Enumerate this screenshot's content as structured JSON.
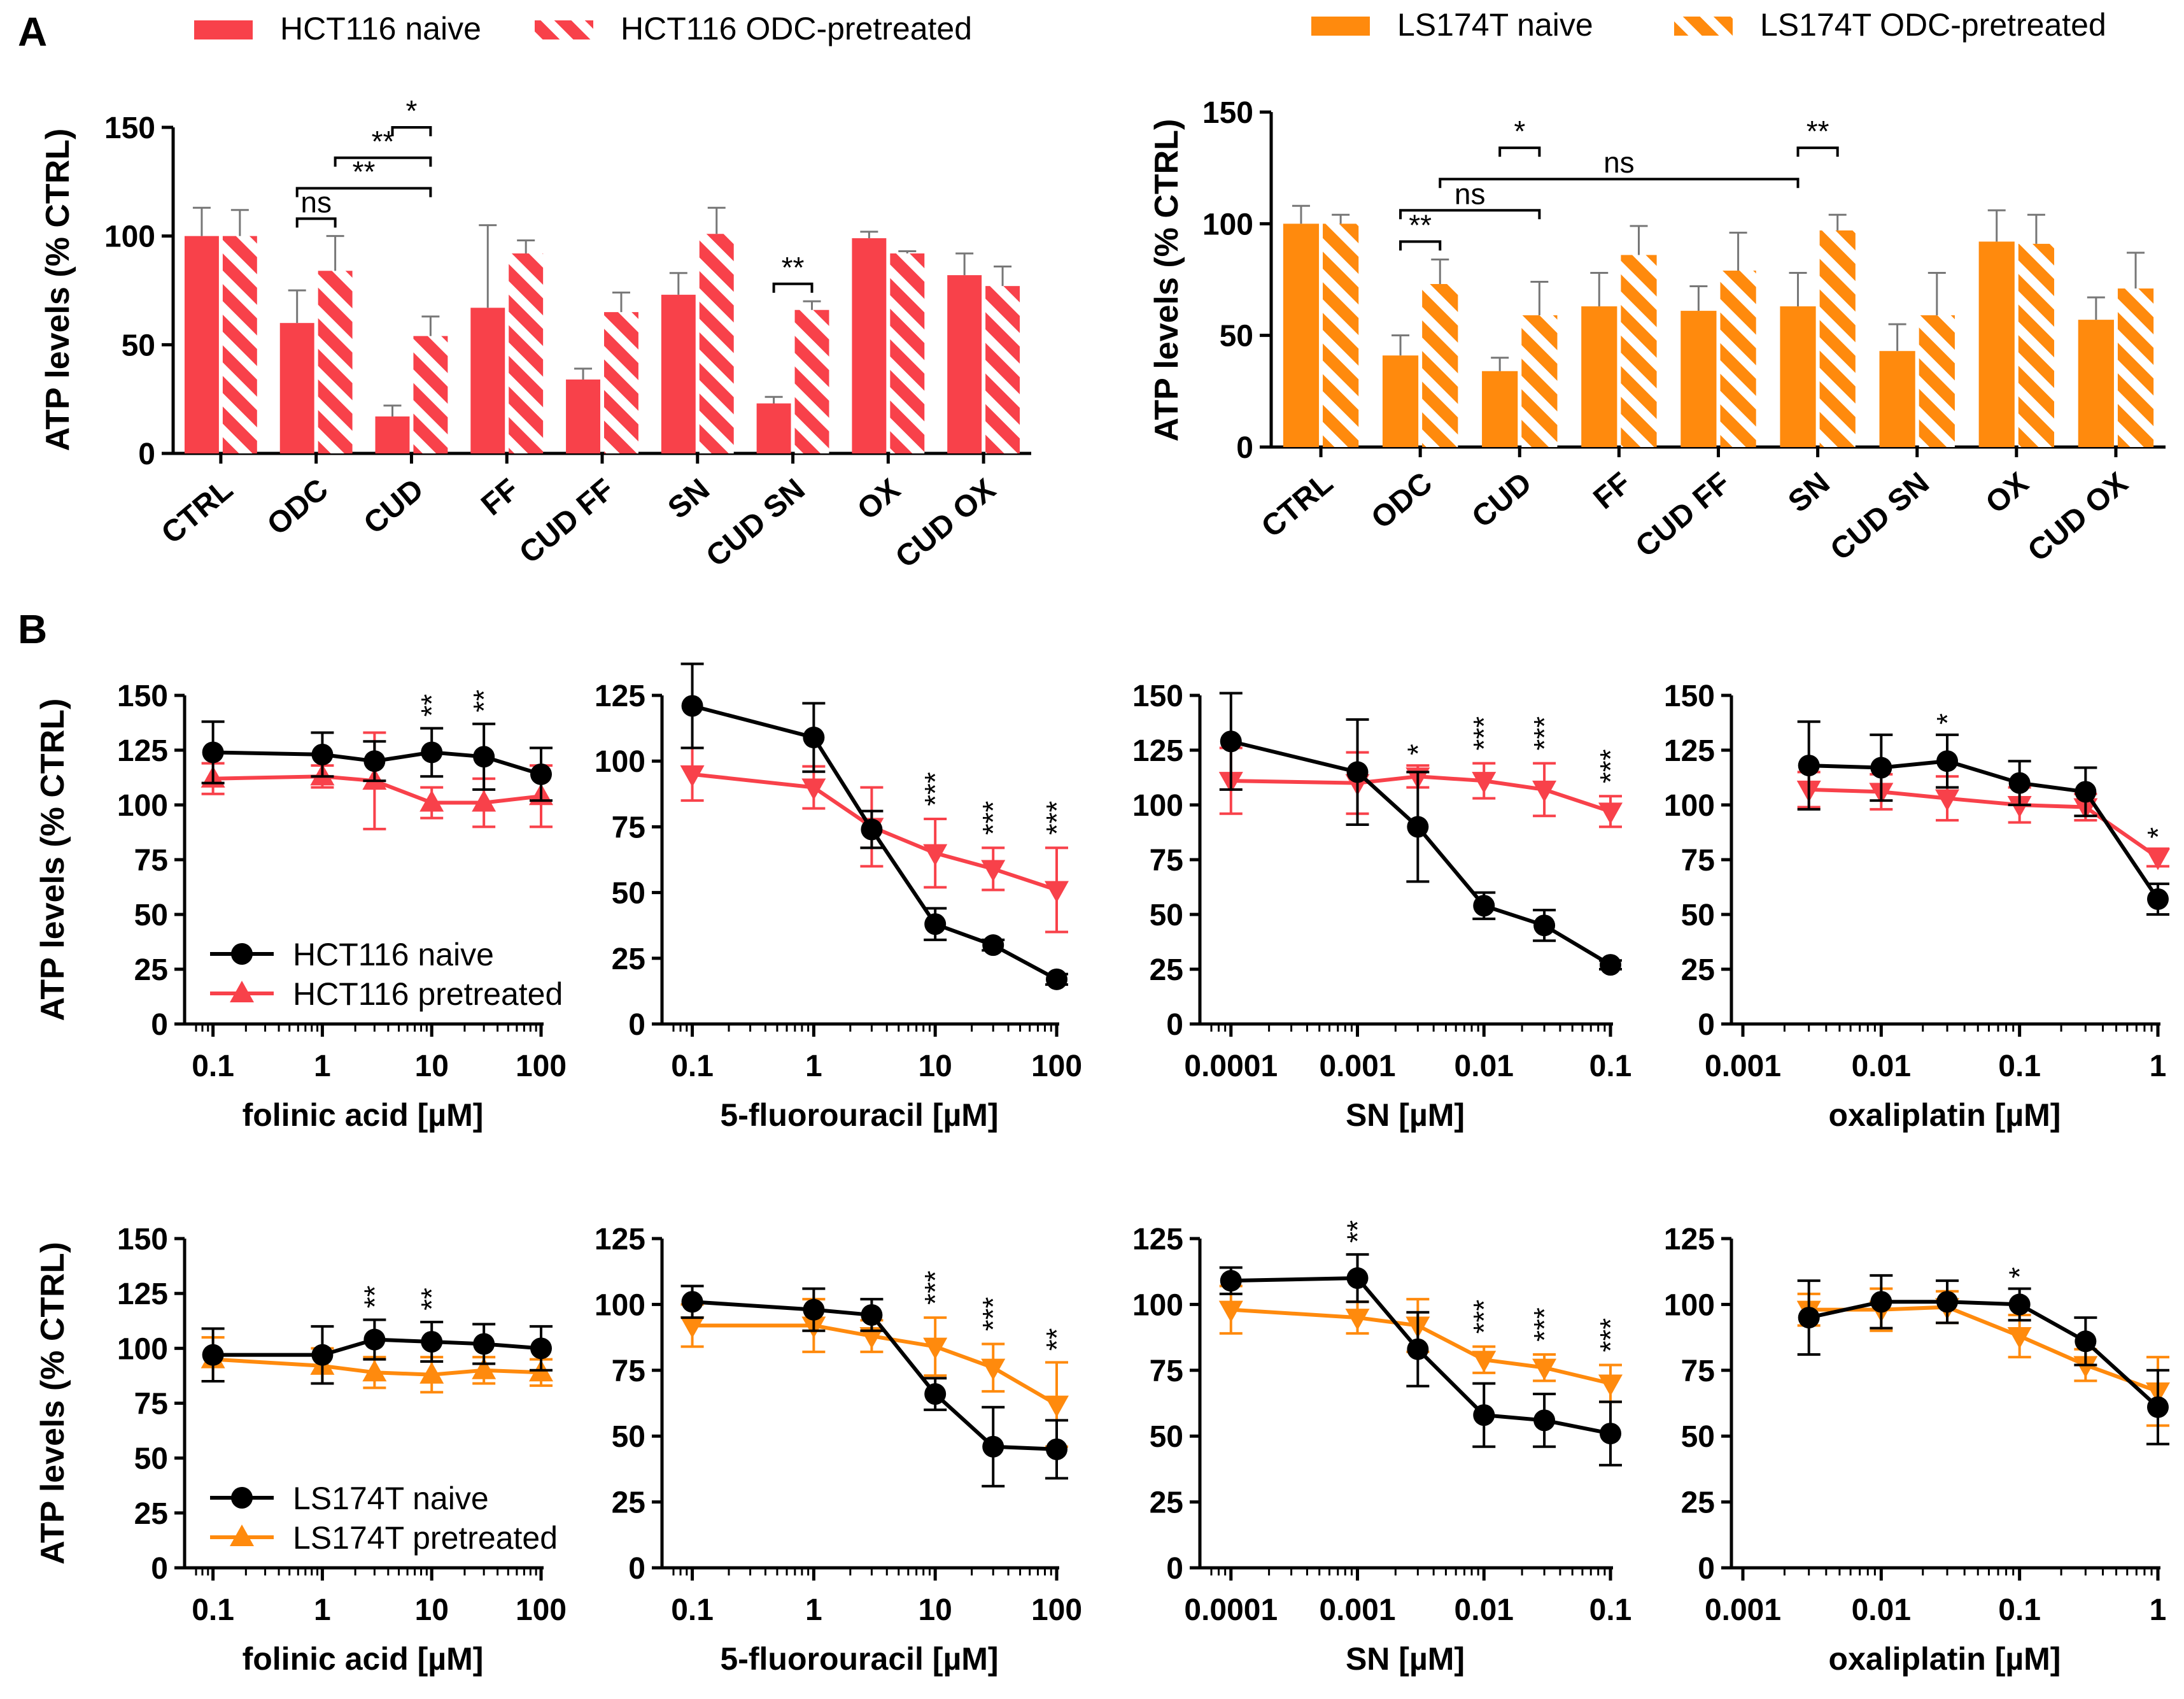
{
  "panel_labels": [
    "A",
    "B"
  ],
  "colors": {
    "hct": "#f8414a",
    "ls": "#ff8a0d",
    "naive_line": "#000000"
  },
  "chart_data": [
    {
      "type": "bar",
      "panel": "A-left",
      "title": "",
      "ylabel": "ATP levels (% CTRL)",
      "xlabel": "",
      "ylim": [
        0,
        150
      ],
      "yticks": [
        "0",
        "50",
        "100",
        "150"
      ],
      "categories": [
        "CTRL",
        "ODC",
        "CUD",
        "FF",
        "CUD FF",
        "SN",
        "CUD SN",
        "OX",
        "CUD OX"
      ],
      "series": [
        {
          "name": "HCT116 naive",
          "pattern": "solid",
          "values": [
            100,
            60,
            17,
            67,
            34,
            73,
            23,
            99,
            82
          ],
          "errors": [
            13,
            15,
            5,
            38,
            5,
            10,
            3,
            3,
            10
          ]
        },
        {
          "name": "HCT116 ODC-pretreated",
          "pattern": "hatched",
          "values": [
            100,
            84,
            54,
            92,
            65,
            101,
            66,
            92,
            77
          ],
          "errors": [
            12,
            16,
            9,
            6,
            9,
            12,
            4,
            1,
            9
          ]
        }
      ],
      "brackets": [
        {
          "from": [
            1,
            0
          ],
          "to": [
            1,
            1
          ],
          "label": "ns"
        },
        {
          "from": [
            1,
            0
          ],
          "to": [
            2,
            1
          ],
          "label": "**"
        },
        {
          "from": [
            1,
            1
          ],
          "to": [
            2,
            1
          ],
          "label": "**"
        },
        {
          "from": [
            2,
            0
          ],
          "to": [
            2,
            1
          ],
          "label": "*"
        },
        {
          "from": [
            6,
            0
          ],
          "to": [
            6,
            1
          ],
          "label": "**"
        }
      ]
    },
    {
      "type": "bar",
      "panel": "A-right",
      "title": "",
      "ylabel": "ATP levels (% CTRL)",
      "xlabel": "",
      "ylim": [
        0,
        150
      ],
      "yticks": [
        "0",
        "50",
        "100",
        "150"
      ],
      "categories": [
        "CTRL",
        "ODC",
        "CUD",
        "FF",
        "CUD FF",
        "SN",
        "CUD SN",
        "OX",
        "CUD OX"
      ],
      "series": [
        {
          "name": "LS174T naive",
          "pattern": "solid",
          "values": [
            100,
            41,
            34,
            63,
            61,
            63,
            43,
            92,
            57
          ],
          "errors": [
            8,
            9,
            6,
            15,
            11,
            15,
            12,
            14,
            10
          ]
        },
        {
          "name": "LS174T ODC-pretreated",
          "pattern": "hatched",
          "values": [
            100,
            73,
            59,
            86,
            79,
            97,
            59,
            91,
            71
          ],
          "errors": [
            4,
            11,
            15,
            13,
            17,
            7,
            19,
            13,
            16
          ]
        }
      ],
      "brackets": [
        {
          "from": [
            1,
            0
          ],
          "to": [
            1,
            1
          ],
          "label": "**"
        },
        {
          "from": [
            1,
            0
          ],
          "to": [
            2,
            1
          ],
          "label": "ns"
        },
        {
          "from": [
            1,
            1
          ],
          "to": [
            5,
            0
          ],
          "label": "ns"
        },
        {
          "from": [
            2,
            0
          ],
          "to": [
            2,
            1
          ],
          "label": "*"
        },
        {
          "from": [
            5,
            0
          ],
          "to": [
            5,
            1
          ],
          "label": "**"
        }
      ]
    },
    {
      "type": "line",
      "panel": "B-1",
      "xscale": "log",
      "xlabel": "folinic  acid [µM]",
      "ylabel": "ATP levels (% CTRL)",
      "xlim": [
        0.07,
        100
      ],
      "ylim": [
        0,
        150
      ],
      "xticks": [
        0.1,
        1,
        10,
        100
      ],
      "xtick_labels": [
        "0.1",
        "1",
        "10",
        "100"
      ],
      "yticks": [
        "0",
        "25",
        "50",
        "75",
        "100",
        "125",
        "150"
      ],
      "series": [
        {
          "name": "HCT116 naive",
          "marker": "circle",
          "x": [
            0.1,
            1,
            3,
            10,
            30,
            100
          ],
          "y": [
            124,
            123,
            120,
            124,
            122,
            114
          ],
          "err": [
            14,
            10,
            9,
            11,
            15,
            12
          ]
        },
        {
          "name": "HCT116 pretreated",
          "marker": "triangle-up",
          "x": [
            0.1,
            1,
            3,
            10,
            30,
            100
          ],
          "y": [
            112,
            113,
            111,
            101,
            101,
            104
          ],
          "err": [
            7,
            5,
            22,
            7,
            11,
            14
          ]
        }
      ],
      "legend": "bottom-left",
      "stars": [
        {
          "x": 10,
          "label": "**"
        },
        {
          "x": 30,
          "label": "**"
        }
      ]
    },
    {
      "type": "line",
      "panel": "B-2",
      "xscale": "log",
      "xlabel": "5-fluorouracil [µM]",
      "ylabel": "",
      "xlim": [
        0.07,
        100
      ],
      "ylim": [
        0,
        125
      ],
      "xticks": [
        0.1,
        1,
        10,
        100
      ],
      "xtick_labels": [
        "0.1",
        "1",
        "10",
        "100"
      ],
      "yticks": [
        "0",
        "25",
        "50",
        "75",
        "100",
        "125"
      ],
      "series": [
        {
          "name": "HCT116 naive",
          "marker": "circle",
          "x": [
            0.1,
            1,
            3,
            10,
            30,
            100
          ],
          "y": [
            121,
            109,
            74,
            38,
            30,
            17
          ],
          "err": [
            16,
            13,
            7,
            6,
            2,
            2
          ]
        },
        {
          "name": "HCT116 pretreated",
          "marker": "triangle-down",
          "x": [
            0.1,
            1,
            3,
            10,
            30,
            100
          ],
          "y": [
            95,
            90,
            75,
            65,
            59,
            51
          ],
          "err": [
            10,
            8,
            15,
            13,
            8,
            16
          ]
        }
      ],
      "stars": [
        {
          "x": 10,
          "label": "***"
        },
        {
          "x": 30,
          "label": "***"
        },
        {
          "x": 100,
          "label": "***"
        }
      ]
    },
    {
      "type": "line",
      "panel": "B-3",
      "xscale": "log",
      "xlabel": "SN [µM]",
      "ylabel": "",
      "xlim": [
        7e-05,
        0.1
      ],
      "ylim": [
        0,
        150
      ],
      "xticks": [
        0.0001,
        0.001,
        0.01,
        0.1
      ],
      "xtick_labels": [
        "0.0001",
        "0.001",
        "0.01",
        "0.1"
      ],
      "yticks": [
        "0",
        "25",
        "50",
        "75",
        "100",
        "125",
        "150"
      ],
      "series": [
        {
          "name": "HCT116 naive",
          "marker": "circle",
          "x": [
            0.0001,
            0.001,
            0.003,
            0.01,
            0.03,
            0.1
          ],
          "y": [
            129,
            115,
            90,
            54,
            45,
            27
          ],
          "err": [
            22,
            24,
            25,
            6,
            7,
            2
          ]
        },
        {
          "name": "HCT116 pretreated",
          "marker": "triangle-down",
          "x": [
            0.0001,
            0.001,
            0.003,
            0.01,
            0.03,
            0.1
          ],
          "y": [
            111,
            110,
            113,
            111,
            107,
            97
          ],
          "err": [
            15,
            14,
            5,
            8,
            12,
            7
          ]
        }
      ],
      "stars": [
        {
          "x": 0.003,
          "label": "*"
        },
        {
          "x": 0.01,
          "label": "***"
        },
        {
          "x": 0.03,
          "label": "***"
        },
        {
          "x": 0.1,
          "label": "***"
        }
      ]
    },
    {
      "type": "line",
      "panel": "B-4",
      "xscale": "log",
      "xlabel": "oxaliplatin [µM]",
      "ylabel": "",
      "xlim": [
        0.001,
        1
      ],
      "ylim": [
        0,
        150
      ],
      "xticks": [
        0.001,
        0.01,
        0.1,
        1
      ],
      "xtick_labels": [
        "0.001",
        "0.01",
        "0.1",
        "1"
      ],
      "yticks": [
        "0",
        "25",
        "50",
        "75",
        "100",
        "125",
        "150"
      ],
      "series": [
        {
          "name": "HCT116 naive",
          "marker": "circle",
          "x": [
            0.003,
            0.01,
            0.03,
            0.1,
            0.3,
            1
          ],
          "y": [
            118,
            117,
            120,
            110,
            106,
            57
          ],
          "err": [
            20,
            15,
            12,
            10,
            11,
            7
          ]
        },
        {
          "name": "HCT116 pretreated",
          "marker": "triangle-down",
          "x": [
            0.003,
            0.01,
            0.03,
            0.1,
            0.3,
            1
          ],
          "y": [
            107,
            106,
            103,
            100,
            99,
            76
          ],
          "err": [
            8,
            8,
            10,
            8,
            6,
            4
          ]
        }
      ],
      "stars": [
        {
          "x": 0.03,
          "label": "*"
        },
        {
          "x": 1,
          "label": "*"
        }
      ]
    },
    {
      "type": "line",
      "panel": "B-5",
      "xscale": "log",
      "xlabel": "folinic  acid [µM]",
      "ylabel": "ATP levels (% CTRL)",
      "xlim": [
        0.07,
        100
      ],
      "ylim": [
        0,
        150
      ],
      "xticks": [
        0.1,
        1,
        10,
        100
      ],
      "xtick_labels": [
        "0.1",
        "1",
        "10",
        "100"
      ],
      "yticks": [
        "0",
        "25",
        "50",
        "75",
        "100",
        "125",
        "150"
      ],
      "series": [
        {
          "name": "LS174T naive",
          "marker": "circle",
          "x": [
            0.1,
            1,
            3,
            10,
            30,
            100
          ],
          "y": [
            97,
            97,
            104,
            103,
            102,
            100
          ],
          "err": [
            12,
            13,
            9,
            9,
            9,
            10
          ]
        },
        {
          "name": "LS174T pretreated",
          "marker": "triangle-up",
          "x": [
            0.1,
            1,
            3,
            10,
            30,
            100
          ],
          "y": [
            95,
            92,
            89,
            88,
            90,
            89
          ],
          "err": [
            10,
            8,
            7,
            8,
            6,
            6
          ]
        }
      ],
      "legend": "bottom-left",
      "stars": [
        {
          "x": 3,
          "label": "**"
        },
        {
          "x": 10,
          "label": "**"
        }
      ]
    },
    {
      "type": "line",
      "panel": "B-6",
      "xscale": "log",
      "xlabel": "5-fluorouracil [µM]",
      "ylabel": "",
      "xlim": [
        0.07,
        100
      ],
      "ylim": [
        0,
        125
      ],
      "xticks": [
        0.1,
        1,
        10,
        100
      ],
      "xtick_labels": [
        "0.1",
        "1",
        "10",
        "100"
      ],
      "yticks": [
        "0",
        "25",
        "50",
        "75",
        "100",
        "125"
      ],
      "series": [
        {
          "name": "LS174T naive",
          "marker": "circle",
          "x": [
            0.1,
            1,
            3,
            10,
            30,
            100
          ],
          "y": [
            101,
            98,
            96,
            66,
            46,
            45
          ],
          "err": [
            6,
            8,
            6,
            6,
            15,
            11
          ]
        },
        {
          "name": "LS174T pretreated",
          "marker": "triangle-down",
          "x": [
            0.1,
            1,
            3,
            10,
            30,
            100
          ],
          "y": [
            92,
            92,
            88,
            84,
            76,
            62
          ],
          "err": [
            8,
            10,
            6,
            11,
            9,
            16
          ]
        }
      ],
      "stars": [
        {
          "x": 10,
          "label": "***"
        },
        {
          "x": 30,
          "label": "***"
        },
        {
          "x": 100,
          "label": "**"
        }
      ]
    },
    {
      "type": "line",
      "panel": "B-7",
      "xscale": "log",
      "xlabel": "SN [µM]",
      "ylabel": "",
      "xlim": [
        7e-05,
        0.1
      ],
      "ylim": [
        0,
        125
      ],
      "xticks": [
        0.0001,
        0.001,
        0.01,
        0.1
      ],
      "xtick_labels": [
        "0.0001",
        "0.001",
        "0.01",
        "0.1"
      ],
      "yticks": [
        "0",
        "25",
        "50",
        "75",
        "100",
        "125"
      ],
      "series": [
        {
          "name": "LS174T naive",
          "marker": "circle",
          "x": [
            0.0001,
            0.001,
            0.003,
            0.01,
            0.03,
            0.1
          ],
          "y": [
            109,
            110,
            83,
            58,
            56,
            51
          ],
          "err": [
            5,
            9,
            14,
            12,
            10,
            12
          ]
        },
        {
          "name": "LS174T pretreated",
          "marker": "triangle-down",
          "x": [
            0.0001,
            0.001,
            0.003,
            0.01,
            0.03,
            0.1
          ],
          "y": [
            98,
            95,
            92,
            79,
            76,
            70
          ],
          "err": [
            9,
            6,
            10,
            5,
            5,
            7
          ]
        }
      ],
      "stars": [
        {
          "x": 0.001,
          "label": "**"
        },
        {
          "x": 0.01,
          "label": "***"
        },
        {
          "x": 0.03,
          "label": "***"
        },
        {
          "x": 0.1,
          "label": "***"
        }
      ]
    },
    {
      "type": "line",
      "panel": "B-8",
      "xscale": "log",
      "xlabel": "oxaliplatin [µM]",
      "ylabel": "",
      "xlim": [
        0.001,
        1
      ],
      "ylim": [
        0,
        125
      ],
      "xticks": [
        0.001,
        0.01,
        0.1,
        1
      ],
      "xtick_labels": [
        "0.001",
        "0.01",
        "0.1",
        "1"
      ],
      "yticks": [
        "0",
        "25",
        "50",
        "75",
        "100",
        "125"
      ],
      "series": [
        {
          "name": "LS174T naive",
          "marker": "circle",
          "x": [
            0.003,
            0.01,
            0.03,
            0.1,
            0.3,
            1
          ],
          "y": [
            95,
            101,
            101,
            100,
            86,
            61
          ],
          "err": [
            14,
            10,
            8,
            6,
            9,
            14
          ]
        },
        {
          "name": "LS174T pretreated",
          "marker": "triangle-down",
          "x": [
            0.003,
            0.01,
            0.03,
            0.1,
            0.3,
            1
          ],
          "y": [
            98,
            98,
            99,
            88,
            77,
            67
          ],
          "err": [
            6,
            8,
            6,
            8,
            6,
            13
          ]
        }
      ],
      "stars": [
        {
          "x": 0.1,
          "label": "*"
        }
      ]
    }
  ]
}
